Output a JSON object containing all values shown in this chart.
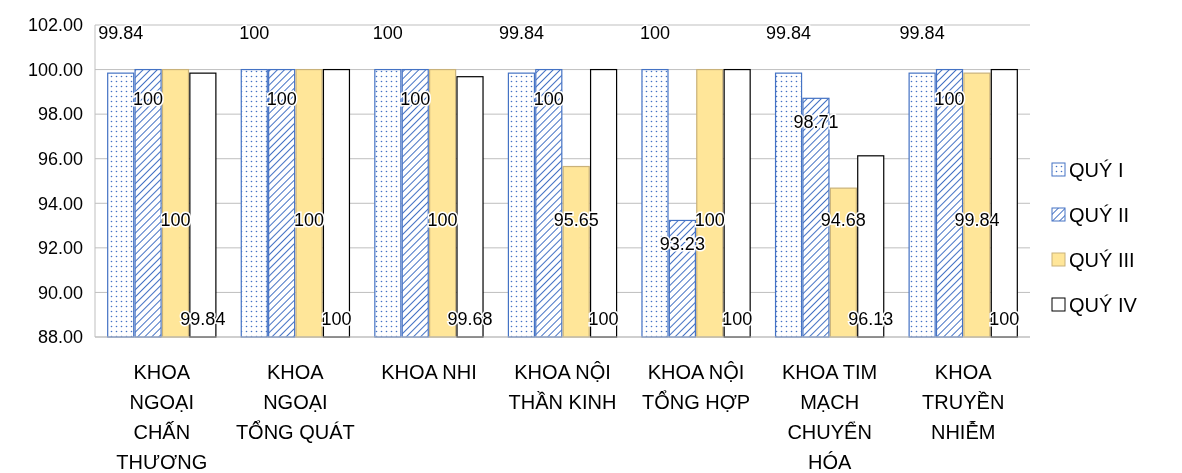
{
  "chart_data": {
    "type": "bar",
    "categories": [
      "KHOA NGOẠI CHẤN THƯƠNG",
      "KHOA NGOẠI TỔNG QUÁT",
      "KHOA NHI",
      "KHOA NỘI THẦN KINH",
      "KHOA NỘI TỔNG HỢP",
      "KHOA TIM MẠCH CHUYỂN HÓA",
      "KHOA TRUYỀN NHIỄM"
    ],
    "series": [
      {
        "name": "QUÝ I",
        "color": "#4472c4",
        "values": [
          99.84,
          100,
          100,
          99.84,
          100,
          99.84,
          99.84
        ]
      },
      {
        "name": "QUÝ II",
        "color": "#4472c4",
        "values": [
          100,
          100,
          100,
          100,
          93.23,
          98.71,
          100
        ]
      },
      {
        "name": "QUÝ III",
        "color": "#ffe699",
        "values": [
          100,
          100,
          100,
          95.65,
          100,
          94.68,
          99.84
        ]
      },
      {
        "name": "QUÝ IV",
        "color": "#ffffff",
        "values": [
          99.84,
          100,
          99.68,
          100,
          100,
          96.13,
          100
        ]
      }
    ],
    "ylim": [
      88,
      102
    ],
    "yticks": [
      {
        "value": 88,
        "label": "88.00"
      },
      {
        "value": 90,
        "label": "90.00"
      },
      {
        "value": 92,
        "label": "92.00"
      },
      {
        "value": 94,
        "label": "94.00"
      },
      {
        "value": 96,
        "label": "96.00"
      },
      {
        "value": 98,
        "label": "98.00"
      },
      {
        "value": 100,
        "label": "100.00"
      },
      {
        "value": 102,
        "label": "102.00"
      }
    ],
    "grid": "y",
    "legend": "right",
    "data_labels": true
  }
}
